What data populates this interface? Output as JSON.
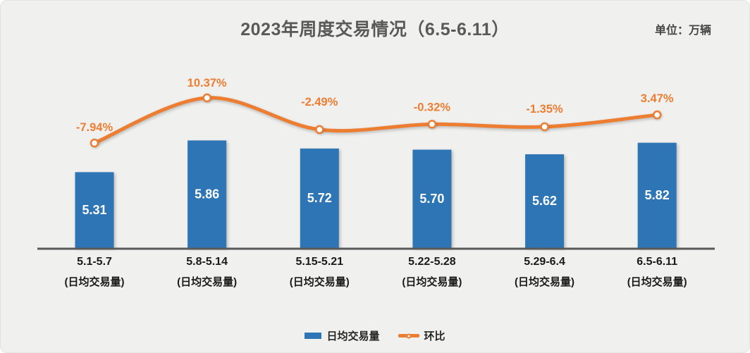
{
  "header": {
    "title": "2023年周度交易情况（6.5-6.11）",
    "unit_label": "单位：万辆"
  },
  "legend": {
    "bar_label": "日均交易量",
    "line_label": "环比"
  },
  "colors": {
    "bar": "#2E75B6",
    "line": "#ED7D31",
    "bar_value_text": "#FFFFFF",
    "pct_text": "#ED7D31",
    "title_text": "#595959",
    "category_text": "#1A1A1A",
    "axis_line": "#595959",
    "background": "#F0F0EF"
  },
  "chart_data": {
    "type": "bar",
    "title": "2023年周度交易情况（6.5-6.11）",
    "unit": "万辆",
    "categories": [
      "5.1-5.7",
      "5.8-5.14",
      "5.15-5.21",
      "5.22-5.28",
      "5.29-6.4",
      "6.5-6.11"
    ],
    "category_sublabel": "(日均交易量)",
    "series": [
      {
        "name": "日均交易量",
        "type": "bar",
        "color": "#2E75B6",
        "values": [
          5.31,
          5.86,
          5.72,
          5.7,
          5.62,
          5.82
        ],
        "labels": [
          "5.31",
          "5.86",
          "5.72",
          "5.70",
          "5.62",
          "5.82"
        ]
      },
      {
        "name": "环比",
        "type": "line",
        "color": "#ED7D31",
        "values": [
          -7.94,
          10.37,
          -2.49,
          -0.32,
          -1.35,
          3.47
        ],
        "labels": [
          "-7.94%",
          "10.37%",
          "-2.49%",
          "-0.32%",
          "-1.35%",
          "3.47%"
        ]
      }
    ],
    "bar_axis_range": [
      4.0,
      6.1
    ],
    "line_axis_range_pct": [
      -25,
      25
    ],
    "grid": false,
    "value_axes_visible": false,
    "legend_position": "bottom"
  }
}
